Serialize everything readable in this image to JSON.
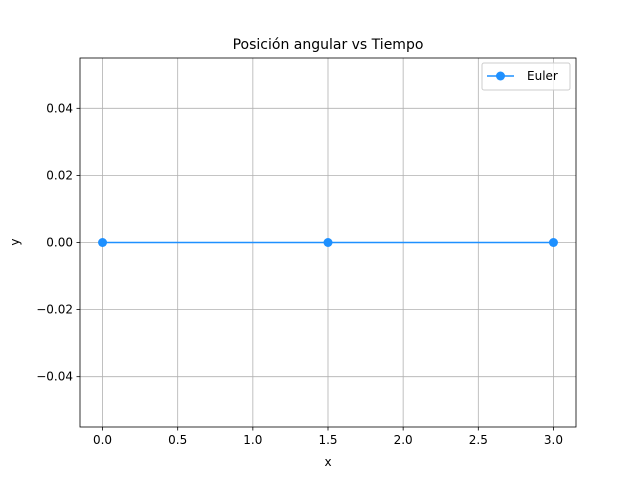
{
  "chart_data": {
    "type": "line",
    "title": "Posición angular vs Tiempo",
    "xlabel": "x",
    "ylabel": "y",
    "xlim": [
      -0.15,
      3.15
    ],
    "ylim": [
      -0.055,
      0.055
    ],
    "xticks": [
      0.0,
      0.5,
      1.0,
      1.5,
      2.0,
      2.5,
      3.0
    ],
    "xtick_labels": [
      "0.0",
      "0.5",
      "1.0",
      "1.5",
      "2.0",
      "2.5",
      "3.0"
    ],
    "yticks": [
      -0.04,
      -0.02,
      0.0,
      0.02,
      0.04
    ],
    "ytick_labels": [
      "−0.04",
      "−0.02",
      "0.00",
      "0.02",
      "0.04"
    ],
    "grid": true,
    "legend_position": "top-right",
    "series": [
      {
        "name": "Euler",
        "color": "#1e90ff",
        "marker": "circle",
        "x": [
          0.0,
          1.5,
          3.0
        ],
        "y": [
          0.0,
          0.0,
          0.0
        ]
      }
    ]
  }
}
